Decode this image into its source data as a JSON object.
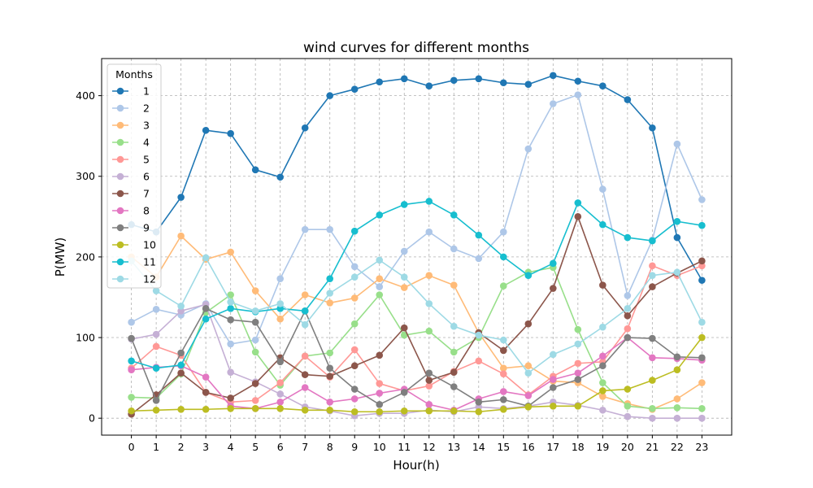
{
  "chart_data": {
    "type": "line",
    "title": "wind curves for different months",
    "xlabel": "Hour(h)",
    "ylabel": "P(MW)",
    "x": [
      0,
      1,
      2,
      3,
      4,
      5,
      6,
      7,
      8,
      9,
      10,
      11,
      12,
      13,
      14,
      15,
      16,
      17,
      18,
      19,
      20,
      21,
      22,
      23
    ],
    "xlim": [
      -1.2,
      24.2
    ],
    "ylim": [
      -21,
      446
    ],
    "yticks": [
      0,
      100,
      200,
      300,
      400
    ],
    "grid": true,
    "legend": {
      "title": "Months",
      "position": "upper-left"
    },
    "series": [
      {
        "name": "1",
        "color": "#1f77b4",
        "values": [
          240,
          231,
          274,
          357,
          353,
          308,
          299,
          360,
          400,
          408,
          417,
          421,
          412,
          419,
          421,
          416,
          414,
          425,
          418,
          412,
          395,
          360,
          224,
          171
        ]
      },
      {
        "name": "2",
        "color": "#aec7e8",
        "values": [
          119,
          135,
          128,
          142,
          92,
          97,
          173,
          234,
          234,
          188,
          163,
          207,
          231,
          210,
          198,
          231,
          334,
          390,
          401,
          284,
          152,
          221,
          340,
          271
        ]
      },
      {
        "name": "3",
        "color": "#ffbb78",
        "values": [
          200,
          175,
          226,
          197,
          206,
          158,
          123,
          153,
          143,
          149,
          173,
          162,
          177,
          165,
          106,
          62,
          65,
          46,
          44,
          27,
          18,
          11,
          24,
          44
        ]
      },
      {
        "name": "4",
        "color": "#98df8a",
        "values": [
          26,
          25,
          55,
          131,
          153,
          82,
          41,
          77,
          81,
          117,
          153,
          103,
          108,
          82,
          100,
          164,
          181,
          187,
          110,
          44,
          15,
          12,
          13,
          12
        ]
      },
      {
        "name": "5",
        "color": "#ff9896",
        "values": [
          62,
          89,
          78,
          32,
          20,
          22,
          44,
          77,
          51,
          85,
          43,
          34,
          40,
          58,
          71,
          55,
          29,
          52,
          68,
          70,
          111,
          189,
          177,
          189
        ]
      },
      {
        "name": "6",
        "color": "#c5b0d5",
        "values": [
          98,
          104,
          133,
          141,
          57,
          45,
          30,
          14,
          9,
          3,
          6,
          6,
          10,
          8,
          14,
          12,
          15,
          20,
          16,
          10,
          2,
          0,
          0,
          0
        ]
      },
      {
        "name": "7",
        "color": "#8c564b",
        "values": [
          5,
          29,
          56,
          32,
          25,
          43,
          75,
          54,
          52,
          65,
          78,
          112,
          47,
          57,
          106,
          84,
          117,
          161,
          250,
          165,
          127,
          163,
          180,
          195
        ]
      },
      {
        "name": "8",
        "color": "#e377c2",
        "values": [
          60,
          63,
          65,
          51,
          15,
          12,
          20,
          38,
          20,
          24,
          31,
          36,
          17,
          10,
          24,
          33,
          28,
          48,
          56,
          77,
          100,
          75,
          74,
          72
        ]
      },
      {
        "name": "9",
        "color": "#7f7f7f",
        "values": [
          99,
          22,
          81,
          136,
          122,
          119,
          70,
          133,
          62,
          36,
          17,
          32,
          56,
          39,
          20,
          23,
          15,
          38,
          48,
          65,
          100,
          99,
          76,
          75
        ]
      },
      {
        "name": "10",
        "color": "#bcbd22",
        "values": [
          9,
          10,
          11,
          11,
          12,
          12,
          12,
          10,
          10,
          8,
          8,
          9,
          9,
          9,
          8,
          11,
          14,
          15,
          15,
          34,
          36,
          47,
          60,
          100
        ]
      },
      {
        "name": "11",
        "color": "#17becf",
        "values": [
          71,
          62,
          66,
          123,
          136,
          132,
          136,
          133,
          173,
          232,
          252,
          265,
          269,
          252,
          227,
          200,
          177,
          192,
          267,
          240,
          224,
          220,
          244,
          239
        ]
      },
      {
        "name": "12",
        "color": "#9edae5",
        "values": [
          195,
          158,
          139,
          199,
          144,
          133,
          142,
          116,
          155,
          175,
          196,
          175,
          142,
          114,
          103,
          97,
          56,
          79,
          92,
          113,
          136,
          177,
          181,
          119
        ]
      }
    ]
  }
}
